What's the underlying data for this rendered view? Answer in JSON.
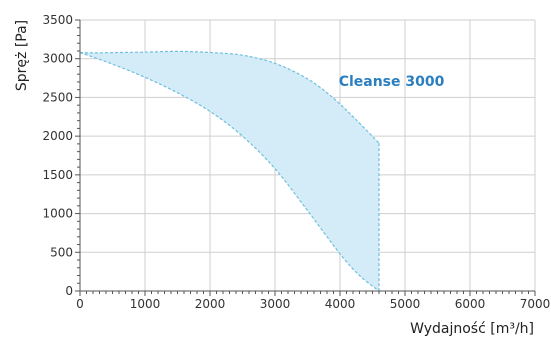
{
  "chart_data": {
    "type": "area",
    "xlabel": "Wydajność [m³/h]",
    "ylabel": "Spręż [Pa]",
    "xlim": [
      0,
      7000
    ],
    "ylim": [
      0,
      3500
    ],
    "xticks": [
      0,
      1000,
      2000,
      3000,
      4000,
      5000,
      6000,
      7000
    ],
    "yticks": [
      0,
      500,
      1000,
      1500,
      2000,
      2500,
      3000,
      3500
    ],
    "grid": true,
    "series": [
      {
        "name": "Cleanse 3000",
        "upper": {
          "x": [
            0,
            200,
            600,
            1000,
            1500,
            2000,
            2500,
            3000,
            3500,
            3900,
            4250,
            4600
          ],
          "y": [
            3080,
            3075,
            3080,
            3085,
            3095,
            3080,
            3045,
            2940,
            2740,
            2490,
            2210,
            1910
          ]
        },
        "lower": {
          "x": [
            0,
            500,
            1000,
            1500,
            2000,
            2500,
            3000,
            3500,
            4000,
            4300,
            4600
          ],
          "y": [
            3080,
            2930,
            2760,
            2560,
            2320,
            2000,
            1580,
            1040,
            480,
            200,
            0
          ]
        }
      }
    ],
    "annotations": [
      {
        "text": "Cleanse 3000",
        "x": 3980,
        "y": 2650
      }
    ],
    "colors": {
      "fill": "#d3ecf7",
      "boundary": "#6fbfe0",
      "label": "#2b7fc0",
      "grid": "#cfcfcf",
      "axis": "#555555"
    }
  }
}
